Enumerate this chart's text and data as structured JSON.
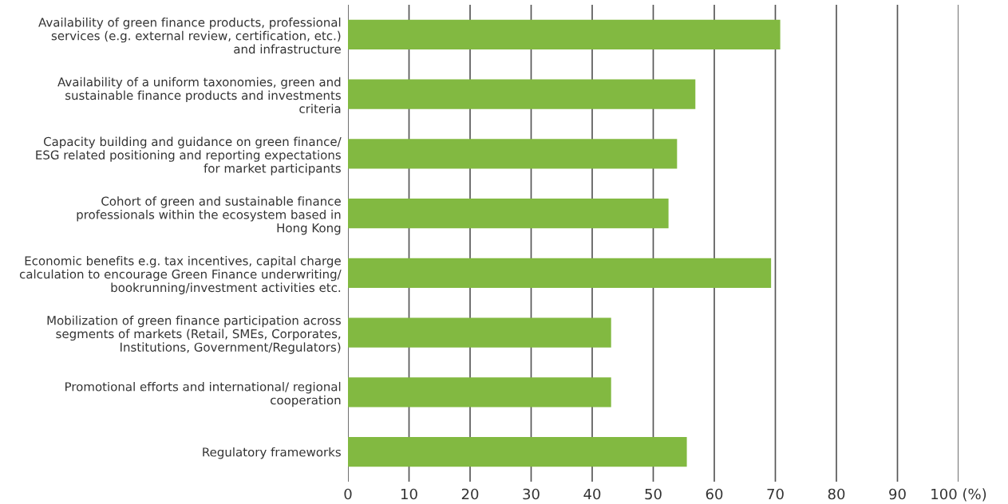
{
  "chart_data": {
    "type": "bar",
    "orientation": "horizontal",
    "categories": [
      "Availability of green finance products, professional\nservices (e.g. external review, certification, etc.)\nand infrastructure",
      "Availability of a uniform taxonomies, green and\nsustainable finance products and investments\ncriteria",
      "Capacity building and guidance on green finance/\nESG related positioning and reporting expectations\nfor market participants",
      "Cohort of green and sustainable finance\nprofessionals within the ecosystem based in\nHong Kong",
      "Economic benefits e.g. tax incentives, capital charge\ncalculation to encourage Green Finance underwriting/\nbookrunning/investment activities etc.",
      "Mobilization of green finance participation across\nsegments of markets (Retail, SMEs, Corporates,\nInstitutions, Government/Regulators)",
      "Promotional efforts and international/ regional\ncooperation",
      "Regulatory frameworks"
    ],
    "values": [
      70.8,
      56.9,
      53.9,
      52.5,
      69.3,
      43.1,
      43.1,
      55.5
    ],
    "color": "#82b941",
    "xlim": [
      0,
      100
    ],
    "xticks": [
      0,
      10,
      20,
      30,
      40,
      50,
      60,
      70,
      80,
      90,
      {
        "value": 100,
        "label": "100 (%)"
      }
    ],
    "grid": "x"
  }
}
